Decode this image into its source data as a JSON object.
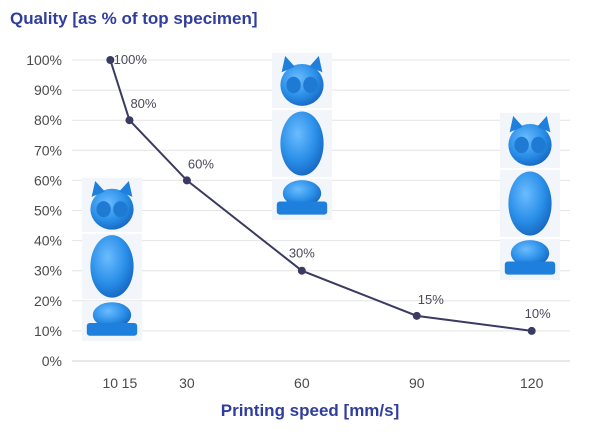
{
  "chart_data": {
    "type": "line",
    "title": "Quality [as % of top specimen]",
    "xlabel": "Printing speed [mm/s]",
    "ylabel": "",
    "x": [
      10,
      15,
      30,
      60,
      90,
      120
    ],
    "x_ticks": [
      "10",
      "15",
      "30",
      "60",
      "90",
      "120"
    ],
    "y_ticks": [
      "0%",
      "10%",
      "20%",
      "30%",
      "40%",
      "50%",
      "60%",
      "70%",
      "80%",
      "90%",
      "100%"
    ],
    "xlim": [
      0,
      130
    ],
    "ylim": [
      0,
      100
    ],
    "grid": true,
    "series": [
      {
        "values": [
          100,
          80,
          60,
          30,
          15,
          10
        ],
        "data_labels": [
          "100%",
          "80%",
          "60%",
          "30%",
          "15%",
          "10%"
        ],
        "color": "#3a3a62"
      }
    ],
    "images": [
      {
        "icon": "owl-figurine-icon",
        "color": "#2a8fe8",
        "attached_to": "10"
      },
      {
        "icon": "owl-figurine-icon",
        "color": "#2a8fe8",
        "attached_to": "60"
      },
      {
        "icon": "owl-figurine-icon",
        "color": "#2a8fe8",
        "attached_to": "120"
      }
    ]
  }
}
